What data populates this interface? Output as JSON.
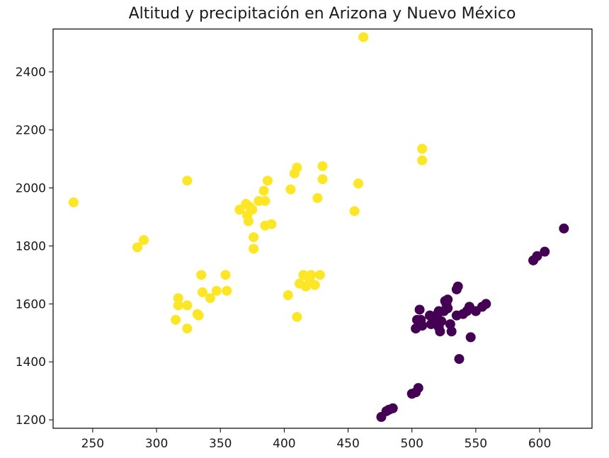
{
  "chart_data": {
    "type": "scatter",
    "title": "Altitud y precipitación en Arizona y Nuevo México",
    "xlabel": "",
    "ylabel": "",
    "xlim": [
      219,
      641
    ],
    "ylim": [
      1171,
      2548
    ],
    "x_ticks": [
      250,
      300,
      350,
      400,
      450,
      500,
      550,
      600
    ],
    "y_ticks": [
      1200,
      1400,
      1600,
      1800,
      2000,
      2200,
      2400
    ],
    "grid": false,
    "colors": {
      "yellow": "#fde725",
      "purple": "#440154"
    },
    "series": [
      {
        "color": "#fde725",
        "points": [
          [
            235,
            1950
          ],
          [
            285,
            1795
          ],
          [
            290,
            1820
          ],
          [
            324,
            2025
          ],
          [
            315,
            1545
          ],
          [
            317,
            1620
          ],
          [
            317,
            1595
          ],
          [
            324,
            1515
          ],
          [
            324,
            1595
          ],
          [
            332,
            1565
          ],
          [
            333,
            1560
          ],
          [
            335,
            1700
          ],
          [
            336,
            1640
          ],
          [
            342,
            1620
          ],
          [
            347,
            1645
          ],
          [
            354,
            1700
          ],
          [
            355,
            1645
          ],
          [
            365,
            1925
          ],
          [
            370,
            1945
          ],
          [
            371,
            1905
          ],
          [
            372,
            1885
          ],
          [
            373,
            1935
          ],
          [
            375,
            1925
          ],
          [
            376,
            1830
          ],
          [
            376,
            1790
          ],
          [
            380,
            1955
          ],
          [
            384,
            1990
          ],
          [
            385,
            1955
          ],
          [
            385,
            1870
          ],
          [
            387,
            2025
          ],
          [
            390,
            1875
          ],
          [
            403,
            1630
          ],
          [
            405,
            1995
          ],
          [
            408,
            2050
          ],
          [
            410,
            2070
          ],
          [
            410,
            1555
          ],
          [
            412,
            1670
          ],
          [
            415,
            1700
          ],
          [
            417,
            1660
          ],
          [
            420,
            1680
          ],
          [
            421,
            1700
          ],
          [
            424,
            1665
          ],
          [
            426,
            1965
          ],
          [
            428,
            1700
          ],
          [
            430,
            2030
          ],
          [
            430,
            2075
          ],
          [
            455,
            1920
          ],
          [
            458,
            2015
          ],
          [
            462,
            2520
          ],
          [
            508,
            2135
          ],
          [
            508,
            2095
          ]
        ]
      },
      {
        "color": "#440154",
        "points": [
          [
            476,
            1210
          ],
          [
            480,
            1230
          ],
          [
            482,
            1235
          ],
          [
            485,
            1240
          ],
          [
            500,
            1290
          ],
          [
            503,
            1295
          ],
          [
            505,
            1310
          ],
          [
            503,
            1515
          ],
          [
            504,
            1545
          ],
          [
            506,
            1580
          ],
          [
            507,
            1545
          ],
          [
            508,
            1525
          ],
          [
            514,
            1560
          ],
          [
            515,
            1530
          ],
          [
            517,
            1555
          ],
          [
            518,
            1540
          ],
          [
            520,
            1565
          ],
          [
            521,
            1520
          ],
          [
            521,
            1575
          ],
          [
            522,
            1505
          ],
          [
            523,
            1540
          ],
          [
            525,
            1575
          ],
          [
            526,
            1610
          ],
          [
            527,
            1600
          ],
          [
            528,
            1615
          ],
          [
            528,
            1585
          ],
          [
            530,
            1530
          ],
          [
            531,
            1505
          ],
          [
            535,
            1560
          ],
          [
            535,
            1650
          ],
          [
            536,
            1660
          ],
          [
            537,
            1410
          ],
          [
            540,
            1565
          ],
          [
            543,
            1575
          ],
          [
            545,
            1590
          ],
          [
            546,
            1485
          ],
          [
            550,
            1575
          ],
          [
            555,
            1590
          ],
          [
            558,
            1600
          ],
          [
            595,
            1750
          ],
          [
            598,
            1765
          ],
          [
            604,
            1780
          ],
          [
            619,
            1860
          ]
        ]
      }
    ]
  }
}
